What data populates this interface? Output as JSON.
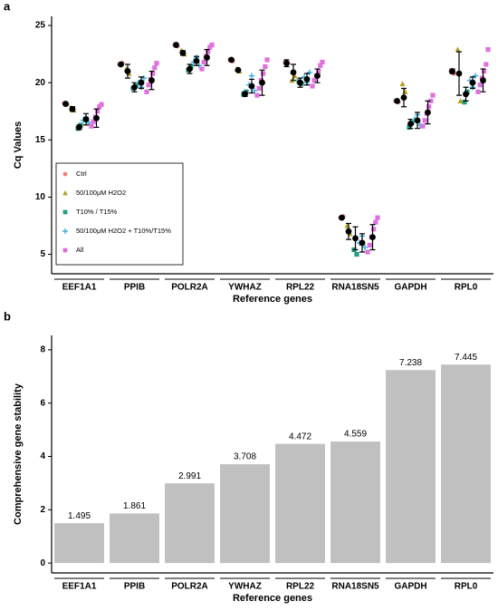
{
  "chart_data": [
    {
      "type": "strip",
      "panel": "a",
      "xlabel": "Reference genes",
      "ylabel": "Cq Values",
      "categories": [
        "EEF1A1",
        "PPIB",
        "POLR2A",
        "YWHAZ",
        "RPL22",
        "RNA18SN5",
        "GAPDH",
        "RPL0"
      ],
      "ylim": [
        3.3,
        25.8
      ],
      "yticks": [
        5,
        10,
        15,
        20,
        25
      ],
      "series": [
        {
          "name": "Ctrl",
          "color": "#f08080",
          "marker": "circle",
          "values": [
            [
              18.2,
              18.1
            ],
            [
              21.6,
              21.7
            ],
            [
              23.3,
              23.2
            ],
            [
              22.0,
              21.9
            ],
            [
              21.8,
              21.7
            ],
            [
              8.2,
              8.3
            ],
            [
              18.4,
              18.3
            ],
            [
              21.0,
              20.8
            ]
          ],
          "means": [
            18.15,
            21.6,
            23.3,
            22.0,
            21.7,
            8.2,
            18.4,
            21.0
          ],
          "errors": [
            0.1,
            0.1,
            0.1,
            0.1,
            0.3,
            0.1,
            0.1,
            0.2
          ]
        },
        {
          "name": "50/100μM H2O2",
          "color": "#b5a020",
          "marker": "triangle",
          "values": [
            [
              17.8,
              17.6
            ],
            [
              21.2,
              20.8
            ],
            [
              22.8,
              22.5
            ],
            [
              21.2,
              21.0
            ],
            [
              20.2,
              20.6
            ],
            [
              7.5,
              6.8
            ],
            [
              19.9,
              19.2
            ],
            [
              22.9,
              18.4
            ]
          ],
          "means": [
            17.7,
            21.0,
            22.6,
            21.1,
            20.9,
            7.0,
            18.7,
            20.8
          ],
          "errors": [
            0.2,
            0.6,
            0.2,
            0.1,
            0.7,
            0.7,
            0.8,
            1.9
          ]
        },
        {
          "name": "T10% / T15%",
          "color": "#20a080",
          "marker": "square",
          "values": [
            [
              16.0,
              16.3
            ],
            [
              19.5,
              19.8
            ],
            [
              21.1,
              21.4
            ],
            [
              19.0,
              19.2
            ],
            [
              20.1,
              19.9
            ],
            [
              5.4,
              5.0
            ],
            [
              16.1,
              16.5
            ],
            [
              18.3,
              19.2
            ]
          ],
          "means": [
            16.1,
            19.6,
            21.2,
            19.0,
            20.0,
            6.4,
            16.4,
            19.0
          ],
          "errors": [
            0.2,
            0.4,
            0.4,
            0.2,
            0.4,
            1.0,
            0.4,
            0.6
          ]
        },
        {
          "name": "50/100μM H2O2 + T10%/T15%",
          "color": "#40b0e0",
          "marker": "plus",
          "values": [
            [
              16.7,
              17.0,
              16.5
            ],
            [
              20.0,
              19.6,
              20.4
            ],
            [
              21.8,
              22.2,
              21.5
            ],
            [
              19.8,
              20.6,
              19.3
            ],
            [
              20.5,
              20.0,
              20.9
            ],
            [
              6.0,
              6.6,
              5.6
            ],
            [
              16.8,
              17.2,
              16.3
            ],
            [
              20.2,
              19.6,
              20.6
            ]
          ],
          "means": [
            16.8,
            20.0,
            21.9,
            19.7,
            20.3,
            6.0,
            16.7,
            20.0
          ],
          "errors": [
            0.5,
            0.5,
            0.4,
            0.6,
            0.5,
            0.8,
            0.7,
            0.5
          ]
        },
        {
          "name": "All",
          "color": "#e070e0",
          "marker": "square",
          "values": [
            [
              16.2,
              16.6,
              17.0,
              17.5,
              17.9,
              18.1
            ],
            [
              19.2,
              19.8,
              20.3,
              20.8,
              21.3,
              21.7
            ],
            [
              21.2,
              21.8,
              22.3,
              22.7,
              23.1,
              23.3
            ],
            [
              18.9,
              19.5,
              20.2,
              20.8,
              21.4,
              22.0
            ],
            [
              19.7,
              20.2,
              20.6,
              21.0,
              21.5,
              21.8
            ],
            [
              5.2,
              5.8,
              6.5,
              7.2,
              7.8,
              8.2
            ],
            [
              16.2,
              16.7,
              17.3,
              17.9,
              18.4,
              18.9
            ],
            [
              19.2,
              19.8,
              20.4,
              21.0,
              21.6,
              22.9
            ]
          ],
          "means": [
            16.9,
            20.2,
            22.2,
            20.0,
            20.6,
            6.5,
            17.4,
            20.2
          ],
          "errors": [
            0.8,
            0.8,
            0.7,
            1.1,
            0.6,
            1.1,
            1.0,
            1.0
          ]
        }
      ]
    },
    {
      "type": "bar",
      "panel": "b",
      "xlabel": "Reference genes",
      "ylabel": "Comprehensive gene stability",
      "categories": [
        "EEF1A1",
        "PPIB",
        "POLR2A",
        "YWHAZ",
        "RPL22",
        "RNA18SN5",
        "GAPDH",
        "RPL0"
      ],
      "values": [
        1.495,
        1.861,
        2.991,
        3.708,
        4.472,
        4.559,
        7.238,
        7.445
      ],
      "color": "#c0c0c0",
      "ylim": [
        -0.37,
        8.54
      ],
      "yticks": [
        0,
        2,
        4,
        6,
        8
      ]
    }
  ]
}
